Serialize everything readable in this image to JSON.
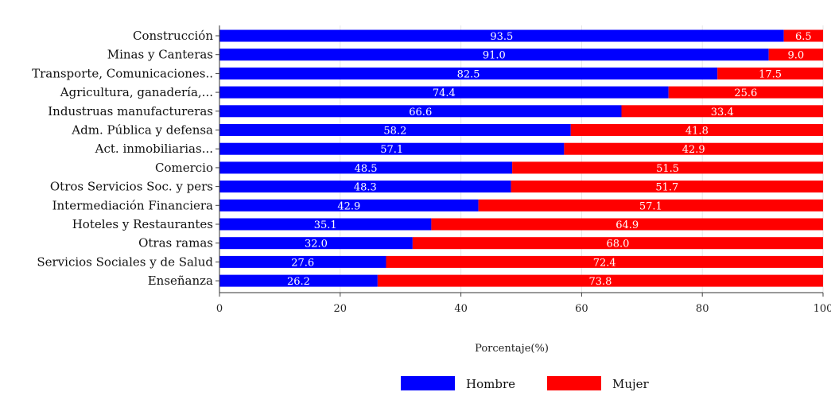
{
  "chart_data": {
    "type": "bar",
    "orientation": "horizontal",
    "stacked": true,
    "categories": [
      "Construcción",
      "Minas y Canteras",
      "Transporte, Comunicaciones..",
      "Agricultura, ganadería,...",
      "Industruas manufactureras",
      "Adm. Pública y defensa",
      "Act. inmobiliarias...",
      "Comercio",
      "Otros Servicios Soc. y pers",
      "Intermediación Financiera",
      "Hoteles y Restaurantes",
      "Otras ramas",
      "Servicios Sociales y de Salud",
      "Enseñanza"
    ],
    "series": [
      {
        "name": "Hombre",
        "color": "#0000ff",
        "values": [
          93.5,
          91.0,
          82.5,
          74.4,
          66.6,
          58.2,
          57.1,
          48.5,
          48.3,
          42.9,
          35.1,
          32.0,
          27.6,
          26.2
        ]
      },
      {
        "name": "Mujer",
        "color": "#ff0000",
        "values": [
          6.5,
          9.0,
          17.5,
          25.6,
          33.4,
          41.8,
          42.9,
          51.5,
          51.7,
          57.1,
          64.9,
          68.0,
          72.4,
          73.8
        ]
      }
    ],
    "data_labels": [
      [
        "93.5",
        "91.0",
        "82.5",
        "74.4",
        "66.6",
        "58.2",
        "57.1",
        "48.5",
        "48.3",
        "42.9",
        "35.1",
        "32.0",
        "27.6",
        "26.2"
      ],
      [
        "6.5",
        "9.0",
        "17.5",
        "25.6",
        "33.4",
        "41.8",
        "42.9",
        "51.5",
        "51.7",
        "57.1",
        "64.9",
        "68.0",
        "72.4",
        "73.8"
      ]
    ],
    "xlabel": "Porcentaje(%)",
    "ylabel": "",
    "title": "",
    "xlim": [
      0,
      100
    ],
    "xticks": [
      "0",
      "20",
      "40",
      "60",
      "80",
      "100"
    ],
    "grid": true,
    "legend_position": "bottom-center",
    "background_color": "#ffffff",
    "grid_color": "#e6e6e6"
  }
}
